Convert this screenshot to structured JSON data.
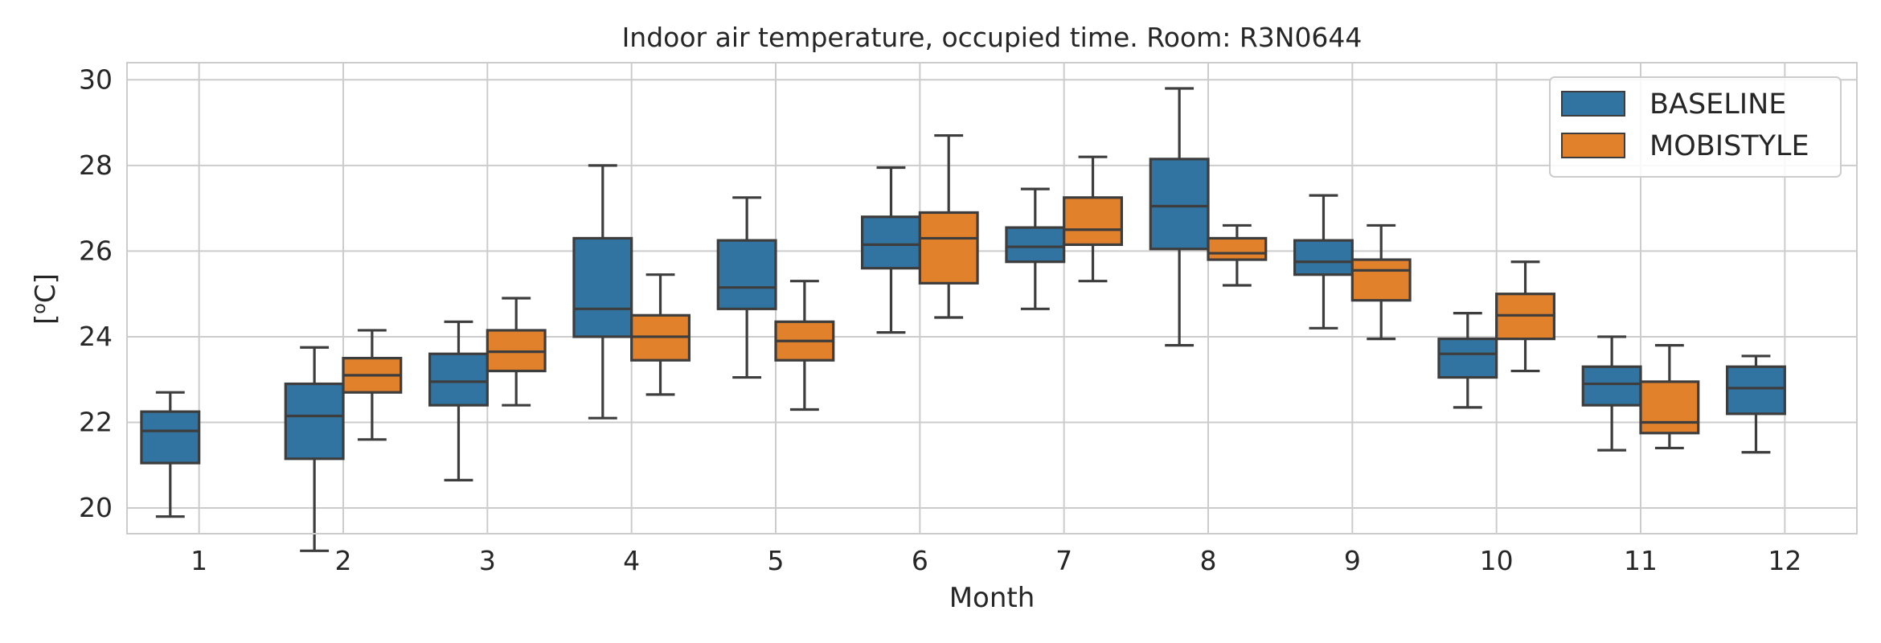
{
  "chart_data": {
    "type": "boxplot",
    "title": "Indoor air temperature, occupied time. Room: R3N0644",
    "xlabel": "Month",
    "ylabel": "[°C]",
    "ylabel_prefix": "[",
    "ylabel_degree": "o",
    "ylabel_suffix": "C]",
    "ylim": [
      19.4,
      30.4
    ],
    "yticks": [
      20,
      22,
      24,
      26,
      28,
      30
    ],
    "categories": [
      "1",
      "2",
      "3",
      "4",
      "5",
      "6",
      "7",
      "8",
      "9",
      "10",
      "11",
      "12"
    ],
    "grid": true,
    "legend_position": "top-right",
    "series": [
      {
        "name": "BASELINE",
        "color": "#3274a1",
        "boxes": [
          {
            "category": "1",
            "whisker_low": 19.8,
            "q1": 21.05,
            "median": 21.8,
            "q3": 22.25,
            "whisker_high": 22.7
          },
          {
            "category": "2",
            "whisker_low": 19.0,
            "q1": 21.15,
            "median": 22.15,
            "q3": 22.9,
            "whisker_high": 23.75
          },
          {
            "category": "3",
            "whisker_low": 20.65,
            "q1": 22.4,
            "median": 22.95,
            "q3": 23.6,
            "whisker_high": 24.35
          },
          {
            "category": "4",
            "whisker_low": 22.1,
            "q1": 24.0,
            "median": 24.65,
            "q3": 26.3,
            "whisker_high": 28.0
          },
          {
            "category": "5",
            "whisker_low": 23.05,
            "q1": 24.65,
            "median": 25.15,
            "q3": 26.25,
            "whisker_high": 27.25
          },
          {
            "category": "6",
            "whisker_low": 24.1,
            "q1": 25.6,
            "median": 26.15,
            "q3": 26.8,
            "whisker_high": 27.95
          },
          {
            "category": "7",
            "whisker_low": 24.65,
            "q1": 25.75,
            "median": 26.1,
            "q3": 26.55,
            "whisker_high": 27.45
          },
          {
            "category": "8",
            "whisker_low": 23.8,
            "q1": 26.05,
            "median": 27.05,
            "q3": 28.15,
            "whisker_high": 29.8
          },
          {
            "category": "9",
            "whisker_low": 24.2,
            "q1": 25.45,
            "median": 25.75,
            "q3": 26.25,
            "whisker_high": 27.3
          },
          {
            "category": "10",
            "whisker_low": 22.35,
            "q1": 23.05,
            "median": 23.6,
            "q3": 23.95,
            "whisker_high": 24.55
          },
          {
            "category": "11",
            "whisker_low": 21.35,
            "q1": 22.4,
            "median": 22.9,
            "q3": 23.3,
            "whisker_high": 24.0
          },
          {
            "category": "12",
            "whisker_low": 21.3,
            "q1": 22.2,
            "median": 22.8,
            "q3": 23.3,
            "whisker_high": 23.55
          }
        ]
      },
      {
        "name": "MOBISTYLE",
        "color": "#e1812c",
        "boxes": [
          {
            "category": "2",
            "whisker_low": 21.6,
            "q1": 22.7,
            "median": 23.1,
            "q3": 23.5,
            "whisker_high": 24.15
          },
          {
            "category": "3",
            "whisker_low": 22.4,
            "q1": 23.2,
            "median": 23.65,
            "q3": 24.15,
            "whisker_high": 24.9
          },
          {
            "category": "4",
            "whisker_low": 22.65,
            "q1": 23.45,
            "median": 24.0,
            "q3": 24.5,
            "whisker_high": 25.45
          },
          {
            "category": "5",
            "whisker_low": 22.3,
            "q1": 23.45,
            "median": 23.9,
            "q3": 24.35,
            "whisker_high": 25.3
          },
          {
            "category": "6",
            "whisker_low": 24.45,
            "q1": 25.25,
            "median": 26.3,
            "q3": 26.9,
            "whisker_high": 28.7
          },
          {
            "category": "7",
            "whisker_low": 25.3,
            "q1": 26.15,
            "median": 26.5,
            "q3": 27.25,
            "whisker_high": 28.2
          },
          {
            "category": "8",
            "whisker_low": 25.2,
            "q1": 25.8,
            "median": 25.95,
            "q3": 26.3,
            "whisker_high": 26.6
          },
          {
            "category": "9",
            "whisker_low": 23.95,
            "q1": 24.85,
            "median": 25.55,
            "q3": 25.8,
            "whisker_high": 26.6
          },
          {
            "category": "10",
            "whisker_low": 23.2,
            "q1": 23.95,
            "median": 24.5,
            "q3": 25.0,
            "whisker_high": 25.75
          },
          {
            "category": "11",
            "whisker_low": 21.4,
            "q1": 21.75,
            "median": 22.0,
            "q3": 22.95,
            "whisker_high": 23.8
          }
        ]
      }
    ]
  },
  "colors": {
    "background": "#ffffff",
    "grid": "#cccccc",
    "axes_edge": "#cccccc",
    "box_edge": "#3d3d3d",
    "text": "#262626"
  }
}
